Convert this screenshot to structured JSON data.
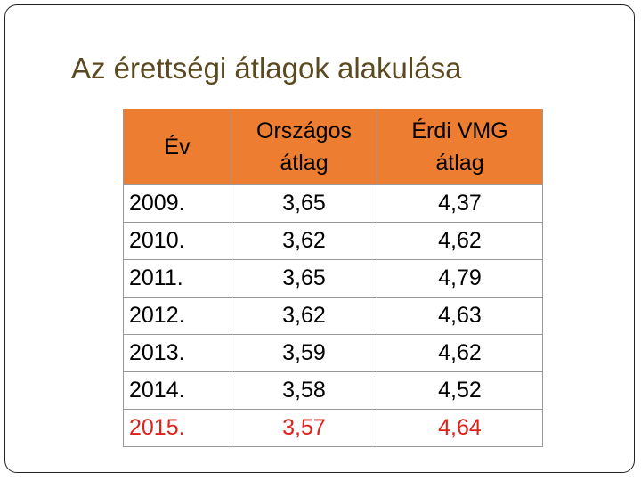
{
  "header": {
    "title": "Az érettségi átlagok alakulása"
  },
  "table": {
    "columns": [
      "Év",
      "Országos átlag",
      "Érdi VMG átlag"
    ],
    "rows": [
      [
        "2009.",
        "3,65",
        "4,37"
      ],
      [
        "2010.",
        "3,62",
        "4,62"
      ],
      [
        "2011.",
        "3,65",
        "4,79"
      ],
      [
        "2012.",
        "3,62",
        "4,63"
      ],
      [
        "2013.",
        "3,59",
        "4,62"
      ],
      [
        "2014.",
        "3,58",
        "4,52"
      ],
      [
        "2015.",
        "3,57",
        "4,64"
      ]
    ]
  }
}
